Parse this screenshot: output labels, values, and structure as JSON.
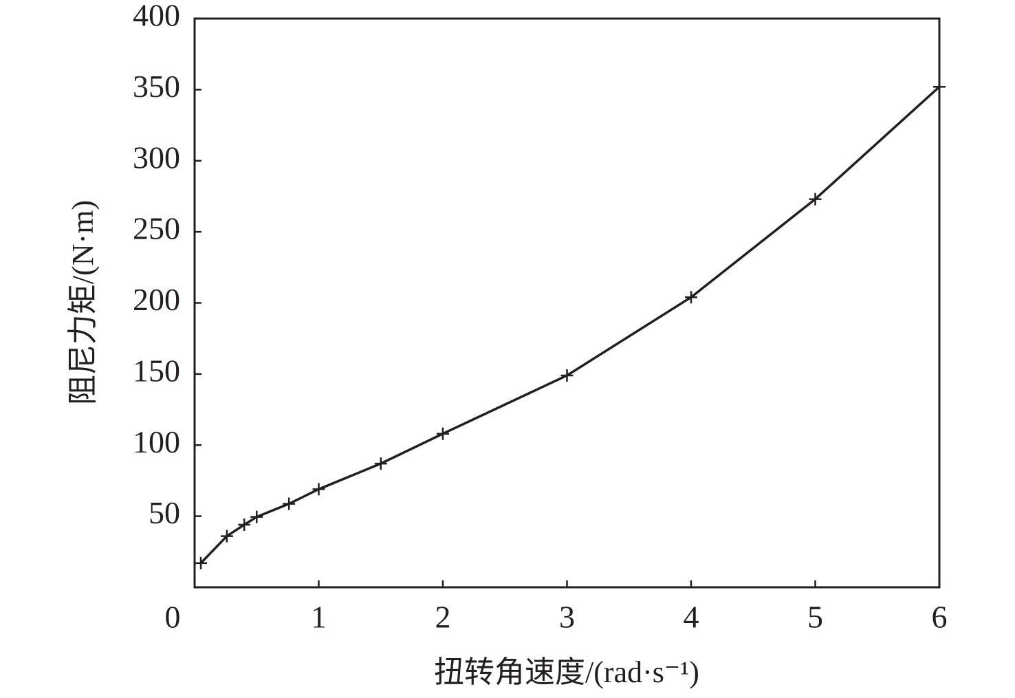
{
  "chart_data": {
    "type": "line",
    "xlabel": "扭转角速度/(rad·s⁻¹)",
    "ylabel": "阻尼力矩/(N·m)",
    "x": [
      0.05,
      0.26,
      0.4,
      0.5,
      0.76,
      1,
      1.5,
      2,
      3,
      4,
      5,
      6
    ],
    "series": [
      {
        "color": "#231f20",
        "marker": "+",
        "values": [
          17,
          36,
          44,
          49.5,
          58.7,
          69,
          87,
          108,
          149,
          204,
          273,
          352
        ]
      }
    ],
    "xlim": [
      0,
      6
    ],
    "xticks": [
      0,
      1,
      2,
      3,
      4,
      5,
      6
    ],
    "ylim": [
      0,
      400
    ],
    "yticks": [
      50,
      100,
      150,
      200,
      250,
      300,
      350,
      400
    ],
    "grid": false
  }
}
